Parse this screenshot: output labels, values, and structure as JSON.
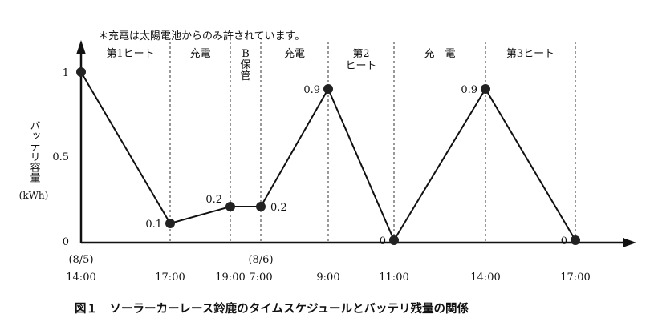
{
  "note": "＊充電は太陽電池からのみ許されています。",
  "caption": "図１　ソーラーカーレース鈴鹿のタイムスケジュールとバッテリ残量の関係",
  "chart_data": {
    "type": "line",
    "ylabel": "バッテリ容量",
    "yunit": "(kWh)",
    "ylim": [
      0,
      1
    ],
    "yticks": [
      {
        "value": 0,
        "label": "0"
      },
      {
        "value": 0.5,
        "label": "0.5"
      },
      {
        "value": 1,
        "label": "1"
      }
    ],
    "xticks": [
      {
        "top": "(8/5)",
        "label": "14:00"
      },
      {
        "top": "",
        "label": "17:00"
      },
      {
        "top": "",
        "label": "19:00"
      },
      {
        "top": "(8/6)",
        "label": "7:00"
      },
      {
        "top": "",
        "label": "9:00"
      },
      {
        "top": "",
        "label": "11:00"
      },
      {
        "top": "",
        "label": "14:00"
      },
      {
        "top": "",
        "label": "17:00"
      }
    ],
    "series": [
      {
        "values": [
          1,
          0.1,
          0.2,
          0.2,
          0.9,
          0,
          0.9,
          0
        ],
        "labels": [
          "1",
          "0.1",
          "0.2",
          "0.2",
          "0.9",
          "0",
          "0.9",
          "0"
        ]
      }
    ],
    "phases": [
      {
        "label": "第1ヒート"
      },
      {
        "label": "充電"
      },
      {
        "label": "B\n保\n管"
      },
      {
        "label": "充電"
      },
      {
        "label": "第2\nヒート"
      },
      {
        "label": "充　電"
      },
      {
        "label": "第3ヒート"
      }
    ],
    "dashed_lines": true
  }
}
